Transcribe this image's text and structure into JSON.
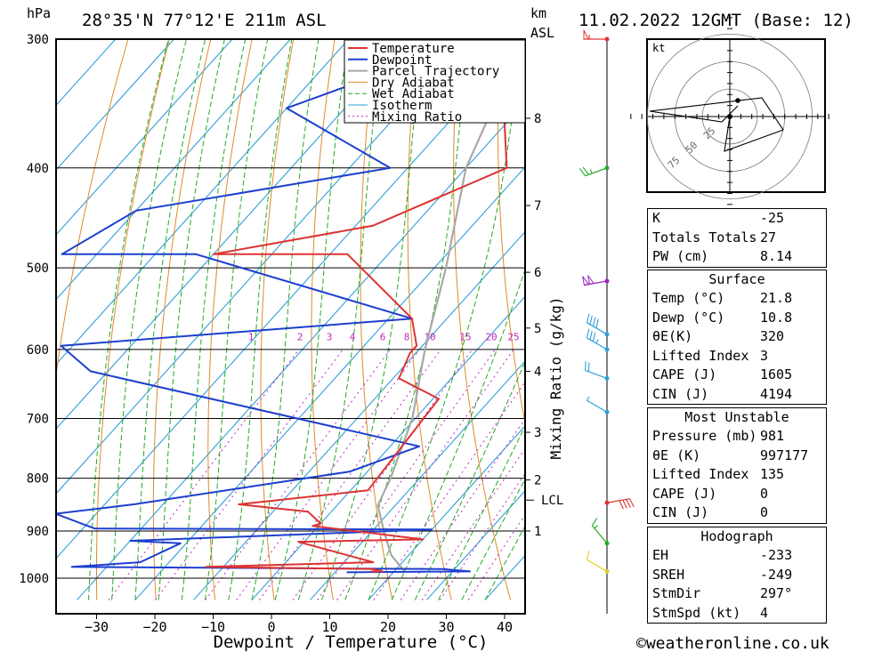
{
  "header": {
    "hpa_unit": "hPa",
    "location": "28°35'N  77°12'E  211m  ASL",
    "km_unit": "km",
    "asl": "ASL",
    "date": "11.02.2022  12GMT  (Base: 12)"
  },
  "legend": [
    "Temperature",
    "Dewpoint",
    "Parcel Trajectory",
    "Dry Adiabat",
    "Wet Adiabat",
    "Isotherm",
    "Mixing Ratio"
  ],
  "colors": {
    "temperature": "#dd3333",
    "dewpoint": "#1c3fcf",
    "parcel": "#a8a8a8",
    "dry_adiabat": "#e08a2a",
    "wet_adiabat": "#22aa22",
    "isotherm": "#2f9fd8",
    "mixing_ratio": "#c028c0"
  },
  "chart_data": {
    "type": "line",
    "title": "28°35'N  77°12'E  211m  ASL",
    "xlabel": "Dewpoint / Temperature (°C)",
    "ylabel": "hPa",
    "secondary_ylabel": "Mixing Ratio (g/kg)",
    "xlim": [
      -38,
      43
    ],
    "ylim": [
      1050,
      300
    ],
    "skew": "skew-T log-p",
    "x_ticks": [
      "−30",
      "−20",
      "−10",
      "0",
      "10",
      "20",
      "30",
      "40"
    ],
    "x_tick_values": [
      -30,
      -20,
      -10,
      0,
      10,
      20,
      30,
      40
    ],
    "pressure_ticks": [
      "300",
      "400",
      "500",
      "600",
      "700",
      "800",
      "900",
      "1000"
    ],
    "pressure_values": [
      300,
      400,
      500,
      600,
      700,
      800,
      900,
      1000
    ],
    "km_ticks": [
      {
        "label": "8",
        "p": 358
      },
      {
        "label": "7",
        "p": 435
      },
      {
        "label": "6",
        "p": 505
      },
      {
        "label": "5",
        "p": 572
      },
      {
        "label": "4",
        "p": 630
      },
      {
        "label": "3",
        "p": 722
      },
      {
        "label": "2",
        "p": 803
      },
      {
        "label": "1",
        "p": 900
      }
    ],
    "lcl": {
      "label": "LCL",
      "p": 840
    },
    "mixing_ratio_labels": [
      "1",
      "2",
      "3",
      "4",
      "6",
      "8",
      "10",
      "15",
      "20",
      "25"
    ],
    "mixing_ratio_label_p": 583,
    "series": [
      {
        "name": "Temperature",
        "points": [
          [
            300,
            -44
          ],
          [
            400,
            -23
          ],
          [
            455,
            -37
          ],
          [
            485,
            -60
          ],
          [
            485,
            -37
          ],
          [
            560,
            -16
          ],
          [
            595,
            -11
          ],
          [
            605,
            -11
          ],
          [
            640,
            -9
          ],
          [
            670,
            1
          ],
          [
            822,
            3
          ],
          [
            848,
            -17
          ],
          [
            862,
            -4
          ],
          [
            885,
            0
          ],
          [
            890,
            -1
          ],
          [
            917,
            20
          ],
          [
            922,
            -1
          ],
          [
            965,
            15
          ],
          [
            975,
            -13
          ],
          [
            980,
            16
          ],
          [
            985,
            18
          ],
          [
            985,
            16
          ]
        ]
      },
      {
        "name": "Dewpoint",
        "points": [
          [
            300,
            -48
          ],
          [
            350,
            -70
          ],
          [
            400,
            -43
          ],
          [
            440,
            -80
          ],
          [
            485,
            -86
          ],
          [
            485,
            -63
          ],
          [
            560,
            -16
          ],
          [
            595,
            -72
          ],
          [
            630,
            -63
          ],
          [
            745,
            5
          ],
          [
            788,
            -3
          ],
          [
            848,
            -35
          ],
          [
            866,
            -47
          ],
          [
            895,
            -38
          ],
          [
            897,
            20
          ],
          [
            920,
            -30
          ],
          [
            925,
            -21
          ],
          [
            965,
            -25
          ],
          [
            975,
            -36
          ],
          [
            980,
            28
          ],
          [
            985,
            33
          ],
          [
            987,
            12
          ]
        ]
      },
      {
        "name": "Parcel Trajectory",
        "points": [
          [
            300,
            -40
          ],
          [
            400,
            -30
          ],
          [
            500,
            -18
          ],
          [
            600,
            -9
          ],
          [
            700,
            -0.5
          ],
          [
            800,
            5
          ],
          [
            850,
            7
          ],
          [
            900,
            12
          ],
          [
            950,
            17
          ],
          [
            985,
            21.8
          ]
        ]
      }
    ]
  },
  "wind_barbs": [
    {
      "p": 300,
      "color": "#dd3333",
      "dir": 270,
      "spd": 55
    },
    {
      "p": 400,
      "color": "#22aa22",
      "dir": 250,
      "spd": 25
    },
    {
      "p": 515,
      "color": "#9922bb",
      "dir": 260,
      "spd": 100
    },
    {
      "p": 580,
      "color": "#2f9fd8",
      "dir": 300,
      "spd": 40
    },
    {
      "p": 600,
      "color": "#2f9fd8",
      "dir": 300,
      "spd": 35
    },
    {
      "p": 640,
      "color": "#2f9fd8",
      "dir": 290,
      "spd": 20
    },
    {
      "p": 690,
      "color": "#2f9fd8",
      "dir": 300,
      "spd": 5
    },
    {
      "p": 845,
      "color": "#dd3333",
      "dir": 80,
      "spd": 40
    },
    {
      "p": 925,
      "color": "#22aa22",
      "dir": 320,
      "spd": 15
    },
    {
      "p": 985,
      "color": "#e0d020",
      "dir": 300,
      "spd": 10
    }
  ],
  "hodograph": {
    "unit": "kt",
    "ring_labels": [
      "25",
      "50",
      "75"
    ],
    "points": [
      [
        0,
        0
      ],
      [
        -2,
        -13
      ],
      [
        20,
        -5
      ],
      [
        12,
        7
      ],
      [
        -30,
        2
      ],
      [
        -3,
        -2
      ],
      [
        3,
        4
      ]
    ],
    "storm_motion": [
      3,
      6
    ]
  },
  "indices": {
    "basic": [
      {
        "label": "K",
        "value": "-25"
      },
      {
        "label": "Totals Totals",
        "value": "27"
      },
      {
        "label": "PW (cm)",
        "value": "8.14"
      }
    ],
    "surface_title": "Surface",
    "surface": [
      {
        "label": "Temp (°C)",
        "value": "21.8"
      },
      {
        "label": "Dewp (°C)",
        "value": "10.8"
      },
      {
        "label": "θE(K)",
        "value": "320"
      },
      {
        "label": "Lifted Index",
        "value": "3"
      },
      {
        "label": "CAPE (J)",
        "value": "1605"
      },
      {
        "label": "CIN (J)",
        "value": "4194"
      }
    ],
    "mu_title": "Most Unstable",
    "mu": [
      {
        "label": "Pressure (mb)",
        "value": "981"
      },
      {
        "label": "θE (K)",
        "value": "997177"
      },
      {
        "label": "Lifted Index",
        "value": "135"
      },
      {
        "label": "CAPE (J)",
        "value": "0"
      },
      {
        "label": "CIN (J)",
        "value": "0"
      }
    ],
    "hodo_title": "Hodograph",
    "hodo": [
      {
        "label": "EH",
        "value": "-233"
      },
      {
        "label": "SREH",
        "value": "-249"
      },
      {
        "label": "StmDir",
        "value": "297°"
      },
      {
        "label": "StmSpd (kt)",
        "value": "4"
      }
    ]
  },
  "footer": {
    "copyright": "©weatheronline.co.uk"
  }
}
